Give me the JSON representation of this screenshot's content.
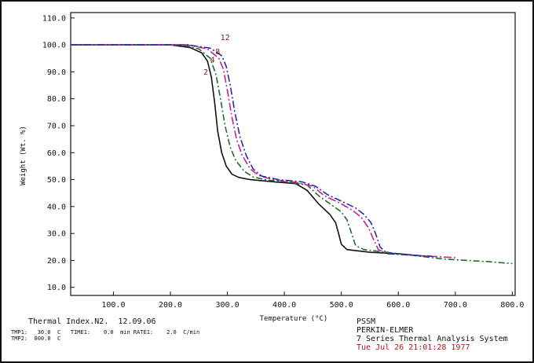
{
  "chart_data": {
    "type": "line",
    "xlabel": "Temperature (°C)",
    "ylabel": "Weight (Wt. %)",
    "xlim": [
      25,
      805
    ],
    "ylim": [
      7,
      112
    ],
    "xticks": [
      "100.0",
      "200.0",
      "300.0",
      "400.0",
      "500.0",
      "600.0",
      "700.0",
      "800.0"
    ],
    "xtick_values": [
      100,
      200,
      300,
      400,
      500,
      600,
      700,
      800
    ],
    "yticks": [
      "10.0",
      "20.0",
      "30.0",
      "40.0",
      "50.0",
      "60.0",
      "70.0",
      "80.0",
      "90.0",
      "100.0",
      "110.0"
    ],
    "ytick_values": [
      10,
      20,
      30,
      40,
      50,
      60,
      70,
      80,
      90,
      100,
      110
    ],
    "grid": false,
    "series": [
      {
        "name": "2",
        "color": "#111111",
        "dash": "",
        "points": [
          [
            25,
            100
          ],
          [
            100,
            100
          ],
          [
            200,
            100
          ],
          [
            235,
            99
          ],
          [
            255,
            97
          ],
          [
            265,
            94
          ],
          [
            272,
            88
          ],
          [
            278,
            78
          ],
          [
            283,
            68
          ],
          [
            290,
            60
          ],
          [
            298,
            55
          ],
          [
            308,
            52
          ],
          [
            320,
            50.8
          ],
          [
            340,
            50
          ],
          [
            380,
            49.2
          ],
          [
            420,
            48.5
          ],
          [
            440,
            46
          ],
          [
            460,
            41
          ],
          [
            480,
            37
          ],
          [
            490,
            34
          ],
          [
            495,
            30
          ],
          [
            500,
            26
          ],
          [
            510,
            24
          ],
          [
            550,
            23
          ],
          [
            600,
            22.5
          ],
          [
            650,
            21.5
          ]
        ]
      },
      {
        "name": "4",
        "color": "#1a6e2a",
        "dash": "8,3,2,3",
        "points": [
          [
            25,
            100
          ],
          [
            100,
            100
          ],
          [
            220,
            100
          ],
          [
            250,
            98.5
          ],
          [
            270,
            95
          ],
          [
            280,
            89
          ],
          [
            288,
            80
          ],
          [
            296,
            70
          ],
          [
            305,
            62
          ],
          [
            315,
            57
          ],
          [
            330,
            53
          ],
          [
            345,
            51
          ],
          [
            370,
            49.8
          ],
          [
            410,
            49
          ],
          [
            440,
            48
          ],
          [
            460,
            44
          ],
          [
            480,
            41
          ],
          [
            500,
            38
          ],
          [
            510,
            35
          ],
          [
            518,
            30
          ],
          [
            525,
            25.5
          ],
          [
            540,
            24
          ],
          [
            580,
            23
          ],
          [
            620,
            22
          ],
          [
            680,
            20.5
          ],
          [
            720,
            20
          ],
          [
            760,
            19.5
          ],
          [
            800,
            18.8
          ]
        ]
      },
      {
        "name": "8",
        "color": "#c8208e",
        "dash": "10,3,2,3",
        "points": [
          [
            25,
            100
          ],
          [
            100,
            100
          ],
          [
            230,
            100
          ],
          [
            265,
            98.5
          ],
          [
            285,
            95
          ],
          [
            293,
            91
          ],
          [
            300,
            83
          ],
          [
            308,
            73
          ],
          [
            316,
            65
          ],
          [
            326,
            59
          ],
          [
            340,
            54
          ],
          [
            355,
            51.5
          ],
          [
            380,
            50
          ],
          [
            420,
            49
          ],
          [
            450,
            47.5
          ],
          [
            470,
            44
          ],
          [
            500,
            41
          ],
          [
            520,
            38.5
          ],
          [
            535,
            36
          ],
          [
            548,
            32
          ],
          [
            556,
            28
          ],
          [
            565,
            24
          ],
          [
            580,
            22.5
          ],
          [
            620,
            22
          ],
          [
            660,
            21.5
          ],
          [
            700,
            21
          ]
        ]
      },
      {
        "name": "12",
        "color": "#2a2aa8",
        "dash": "9,3,2,3",
        "points": [
          [
            25,
            100
          ],
          [
            100,
            100
          ],
          [
            230,
            100
          ],
          [
            270,
            98.8
          ],
          [
            290,
            96
          ],
          [
            298,
            92
          ],
          [
            305,
            85
          ],
          [
            313,
            75
          ],
          [
            322,
            66
          ],
          [
            333,
            59
          ],
          [
            345,
            54
          ],
          [
            360,
            51.3
          ],
          [
            390,
            50
          ],
          [
            430,
            49.2
          ],
          [
            455,
            47.5
          ],
          [
            475,
            44.5
          ],
          [
            500,
            42
          ],
          [
            525,
            39.5
          ],
          [
            540,
            37
          ],
          [
            552,
            34
          ],
          [
            560,
            30
          ],
          [
            568,
            25
          ],
          [
            580,
            22.6
          ],
          [
            620,
            22
          ],
          [
            660,
            21.5
          ]
        ]
      }
    ]
  },
  "footer": {
    "title_line": "Thermal Index.N2.  12.09.06",
    "params_line1": "TMP1:   30.0  C   TIME1:    0.0  min RATE1:    2.0  C/min",
    "params_line2": "TMP2:  800.0  C",
    "company": "PSSM",
    "manufacturer": "PERKIN-ELMER",
    "system": "7 Series Thermal Analysis System",
    "timestamp": "Tue Jul 26 21:01:28 1977"
  },
  "colors": {
    "timestamp": "#b01818",
    "curve_label": "#8a1a1a"
  }
}
